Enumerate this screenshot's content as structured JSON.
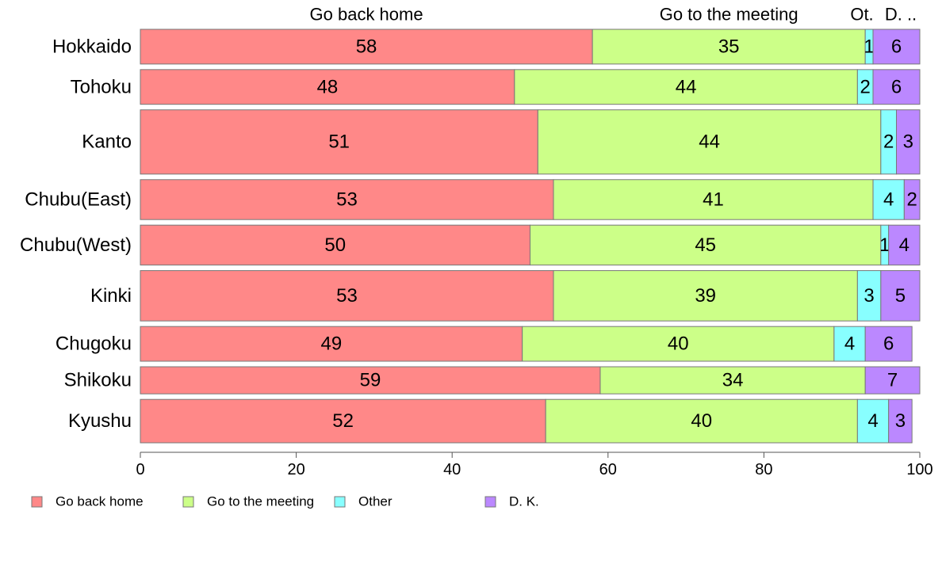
{
  "chart_data": {
    "type": "bar",
    "orientation": "horizontal",
    "stacked": true,
    "normalized_percent": true,
    "categories": [
      "Hokkaido",
      "Tohoku",
      "Kanto",
      "Chubu(East)",
      "Chubu(West)",
      "Kinki",
      "Chugoku",
      "Shikoku",
      "Kyushu"
    ],
    "relative_bar_widths": [
      1,
      1,
      1.85,
      1.15,
      1.15,
      1.45,
      1,
      0.78,
      1.25
    ],
    "series": [
      {
        "name": "Go back home",
        "color": "#ff8888",
        "values": [
          58,
          48,
          51,
          53,
          50,
          53,
          49,
          59,
          52
        ],
        "labels": [
          "58",
          "48",
          "51",
          "53",
          "50",
          "53",
          "49",
          "59",
          "52"
        ]
      },
      {
        "name": "Go to the meeting",
        "color": "#ccff88",
        "values": [
          35,
          44,
          44,
          41,
          45,
          39,
          40,
          34,
          40
        ],
        "labels": [
          "35",
          "44",
          "44",
          "41",
          "45",
          "39",
          "40",
          "34",
          "40"
        ]
      },
      {
        "name": "Other",
        "color": "#88ffff",
        "values": [
          1,
          2,
          2,
          4,
          1,
          3,
          4,
          0,
          4
        ],
        "labels": [
          "1",
          "2",
          "2",
          "4",
          "1",
          "3",
          "4",
          "",
          "4"
        ]
      },
      {
        "name": "D. K.",
        "color": "#bb88ff",
        "values": [
          6,
          6,
          3,
          2,
          4,
          5,
          6,
          7,
          3
        ],
        "labels": [
          "6",
          "6",
          "3",
          "2",
          "4",
          "5",
          "6",
          "7",
          "3"
        ]
      }
    ],
    "top_labels": [
      "Go back home",
      "Go to the meeting",
      "Ot.",
      "D. .."
    ],
    "xlim": [
      0,
      100
    ],
    "xticks": [
      0,
      20,
      40,
      60,
      80,
      100
    ],
    "xtick_labels": [
      "0",
      "20",
      "40",
      "60",
      "80",
      "100"
    ],
    "legend": {
      "position": "bottom-left",
      "entries": [
        "Go back home",
        "Go to the meeting",
        "Other",
        "D. K."
      ]
    },
    "grid": false,
    "title": "",
    "xlabel": "",
    "ylabel": ""
  }
}
